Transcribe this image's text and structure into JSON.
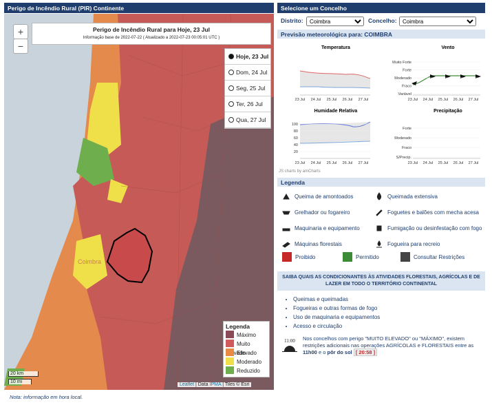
{
  "left_panel": {
    "title": "Perigo de Incêndio Rural (PIR) Continente",
    "zoom_in": "+",
    "zoom_out": "−",
    "map_title": "Perigo de Incêndio Rural para Hoje, 23 Jul",
    "map_subtitle": "Informação base de 2022-07-22 ( Atualizado a 2022-07-23 00:05:01 UTC )",
    "days": [
      "Hoje, 23 Jul",
      "Dom, 24 Jul",
      "Seg, 25 Jul",
      "Ter, 26 Jul",
      "Qua, 27 Jul"
    ],
    "place_label": "Coimbra",
    "legend": {
      "title": "Legenda",
      "items": [
        {
          "label": "Máximo",
          "color": "#8b4a57"
        },
        {
          "label": "Muito Elevado",
          "color": "#cf5b5b"
        },
        {
          "label": "Elevado",
          "color": "#ea8b45"
        },
        {
          "label": "Moderado",
          "color": "#efe04a"
        },
        {
          "label": "Reduzido",
          "color": "#6fae4c"
        }
      ]
    },
    "scale": [
      "20 km",
      "10 mi"
    ],
    "attribution": [
      "Leaflet",
      "| Data",
      "IPMA",
      "| Tiles © Esri"
    ],
    "note": "Nota: informação em hora local."
  },
  "right_panel": {
    "title": "Selecione um Concelho",
    "district_label": "Distrito:",
    "district": "Coimbra",
    "council_label": "Concelho:",
    "council": "Coimbra",
    "forecast_title": "Previsão meteorológica para: COIMBRA",
    "dates": [
      "23 Jul",
      "24 Jul",
      "25 Jul",
      "26 Jul",
      "27 Jul"
    ],
    "charts": {
      "temperature": "Temperatura",
      "wind": "Vento",
      "humidity": "Humidade Relativa",
      "precipitation": "Precipitação"
    },
    "wind_levels": [
      "Muito Forte",
      "Forte",
      "Moderado",
      "Fraco",
      "Variável"
    ],
    "precip_levels": [
      "Forte",
      "Moderado",
      "Fraco",
      "S/Precip."
    ],
    "humidity_ticks": [
      100,
      80,
      60,
      40,
      20
    ],
    "amcharts": "JS charts by amCharts",
    "legend_title": "Legenda",
    "activities": [
      "Queima de amontoados",
      "Queimada extensiva",
      "Grelhador ou fogareiro",
      "Foguetes e balões com mecha acesa",
      "Maquinaria e equipamento",
      "Fumigação ou desinfestação com fogo",
      "Máquinas florestais",
      "Fogueira para recreio"
    ],
    "status": [
      {
        "label": "Proibido",
        "color": "#c62828"
      },
      {
        "label": "Permitido",
        "color": "#3d8b37"
      },
      {
        "label": "Consultar Restrições",
        "color": "#444444"
      }
    ],
    "info_title": "SAIBA QUAIS AS CONDICIONANTES ÀS ATIVIDADES FLORESTAIS, AGRÍCOLAS E DE LAZER EM TODO O TERRITÓRIO CONTINENTAL",
    "info_items": [
      "Queimas e queimadas",
      "Fogueiras e outras formas de fogo",
      "Uso de maquinaria e equipamentos",
      "Acesso e circulação"
    ],
    "clock": "11:00",
    "restriction": [
      "Nos concelhos com perigo \"MUITO ELEVADO\" ou \"MÁXIMO\", existem restrições adicionais nas operações AGRÍCOLAS e FLORESTAIS entre as",
      "11h00",
      "e o",
      "pôr do sol",
      "[ 20:58 ]"
    ]
  }
}
